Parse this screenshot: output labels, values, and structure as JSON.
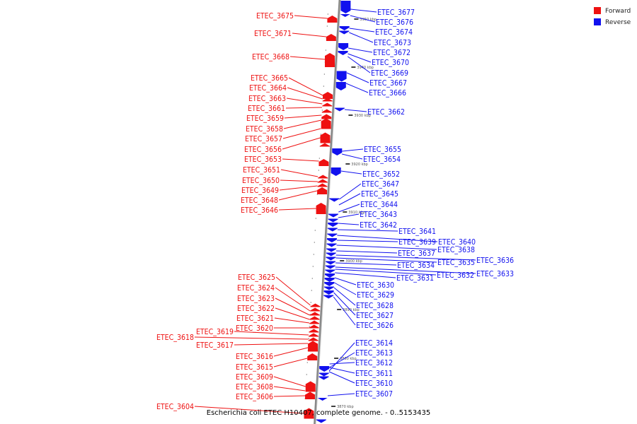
{
  "caption": "Escherichia coli ETEC H10407, complete genome. - 0..5153435",
  "colors": {
    "forward": "#ee1111",
    "reverse": "#1111ee",
    "axis": "#888888"
  },
  "legend": [
    {
      "label": "Forward",
      "strand": "forward"
    },
    {
      "label": "Reverse",
      "strand": "reverse"
    }
  ],
  "ticks": [
    "3950 kbp",
    "3940 kbp",
    "3930 kbp",
    "3920 kbp",
    "3910 kbp",
    "3900 kbp",
    "3890 kbp",
    "3880 kbp",
    "3870 kbp"
  ],
  "forward_labels": [
    "ETEC_3675",
    "ETEC_3671",
    "ETEC_3668",
    "ETEC_3665",
    "ETEC_3664",
    "ETEC_3663",
    "ETEC_3661",
    "ETEC_3659",
    "ETEC_3658",
    "ETEC_3657",
    "ETEC_3656",
    "ETEC_3653",
    "ETEC_3651",
    "ETEC_3650",
    "ETEC_3649",
    "ETEC_3648",
    "ETEC_3646",
    "ETEC_3625",
    "ETEC_3624",
    "ETEC_3623",
    "ETEC_3622",
    "ETEC_3621",
    "ETEC_3620",
    "ETEC_3619",
    "ETEC_3618",
    "ETEC_3617",
    "ETEC_3616",
    "ETEC_3615",
    "ETEC_3609",
    "ETEC_3608",
    "ETEC_3606",
    "ETEC_3604"
  ],
  "reverse_labels": [
    "ETEC_3677",
    "ETEC_3676",
    "ETEC_3674",
    "ETEC_3673",
    "ETEC_3672",
    "ETEC_3670",
    "ETEC_3669",
    "ETEC_3667",
    "ETEC_3666",
    "ETEC_3662",
    "ETEC_3655",
    "ETEC_3654",
    "ETEC_3652",
    "ETEC_3647",
    "ETEC_3645",
    "ETEC_3644",
    "ETEC_3643",
    "ETEC_3642",
    "ETEC_3641",
    "ETEC_3640",
    "ETEC_3639",
    "ETEC_3638",
    "ETEC_3637",
    "ETEC_3636",
    "ETEC_3635",
    "ETEC_3634",
    "ETEC_3633",
    "ETEC_3632",
    "ETEC_3631",
    "ETEC_3630",
    "ETEC_3629",
    "ETEC_3628",
    "ETEC_3627",
    "ETEC_3626",
    "ETEC_3614",
    "ETEC_3613",
    "ETEC_3612",
    "ETEC_3611",
    "ETEC_3610",
    "ETEC_3607"
  ]
}
